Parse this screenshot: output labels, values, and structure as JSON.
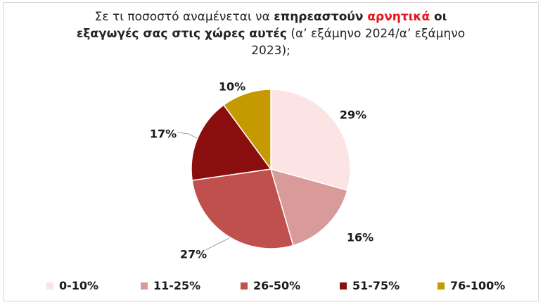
{
  "title": {
    "part1": "Σε τι ποσοστό αναμένεται να ",
    "part2": "επηρεαστούν ",
    "part3": "αρνητικά",
    "part4": " οι",
    "part5": "εξαγωγές σας στις χώρες αυτές",
    "part6": " (α’ εξάμηνο 2024/α’ εξάμηνο",
    "part7": "2023);"
  },
  "chart_data": {
    "type": "pie",
    "categories": [
      "0-10%",
      "11-25%",
      "26-50%",
      "51-75%",
      "76-100%"
    ],
    "values": [
      29,
      16,
      27,
      17,
      10
    ],
    "labels": [
      "29%",
      "16%",
      "27%",
      "17%",
      "10%"
    ],
    "colors": [
      "#fce4e4",
      "#d99a9a",
      "#c0504d",
      "#8b0e0e",
      "#c49a00"
    ],
    "legend_position": "bottom"
  }
}
